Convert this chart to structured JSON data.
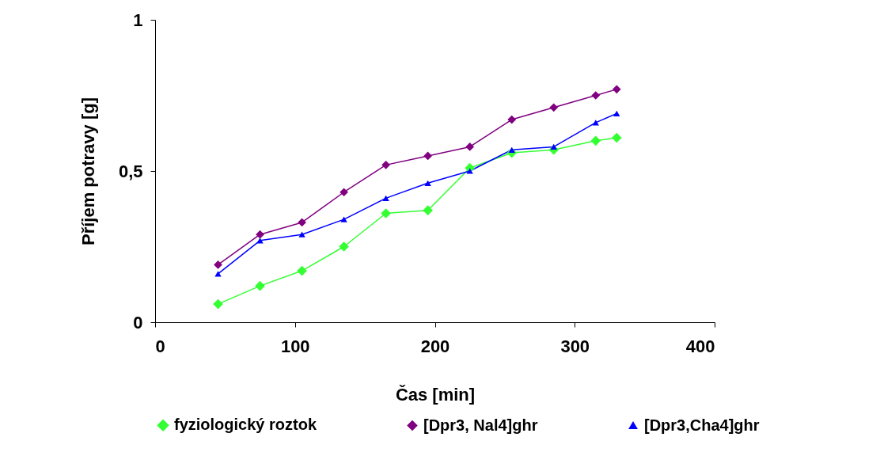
{
  "chart_data": {
    "type": "line",
    "xlabel": "Čas [min]",
    "ylabel": "Příjem potravy [g]",
    "x": [
      45,
      75,
      105,
      135,
      165,
      195,
      225,
      255,
      285,
      315,
      330
    ],
    "series": [
      {
        "name": "fyziologický roztok",
        "color": "#33ff33",
        "marker": "diamond",
        "values": [
          0.06,
          0.12,
          0.17,
          0.25,
          0.36,
          0.37,
          0.51,
          0.56,
          0.57,
          0.6,
          0.61
        ]
      },
      {
        "name": "[Dpr3, Nal4]ghr",
        "color": "#800080",
        "marker": "diamond",
        "values": [
          0.19,
          0.29,
          0.33,
          0.43,
          0.52,
          0.55,
          0.58,
          0.67,
          0.71,
          0.75,
          0.77
        ]
      },
      {
        "name": "[Dpr3,Cha4]ghr",
        "color": "#0000ff",
        "marker": "triangle",
        "values": [
          0.16,
          0.27,
          0.29,
          0.34,
          0.41,
          0.46,
          0.5,
          0.57,
          0.58,
          0.66,
          0.69
        ]
      }
    ],
    "xlim": [
      0,
      400
    ],
    "xticks": [
      0,
      100,
      200,
      300,
      400
    ],
    "ylim": [
      0,
      1
    ],
    "yticks": [
      0,
      {
        "value": 0.5,
        "label": "0,5"
      },
      1
    ],
    "grid": false,
    "legend": "bottom",
    "line_style": "solid"
  }
}
